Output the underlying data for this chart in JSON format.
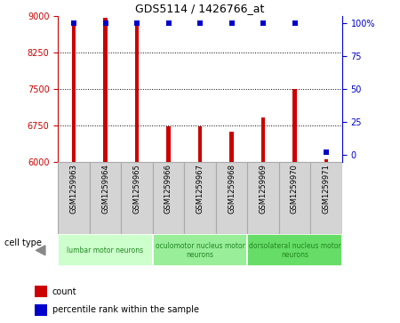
{
  "title": "GDS5114 / 1426766_at",
  "samples": [
    "GSM1259963",
    "GSM1259964",
    "GSM1259965",
    "GSM1259966",
    "GSM1259967",
    "GSM1259968",
    "GSM1259969",
    "GSM1259970",
    "GSM1259971"
  ],
  "counts": [
    8850,
    8970,
    8830,
    6720,
    6730,
    6620,
    6900,
    7500,
    6050
  ],
  "percentiles": [
    100,
    100,
    100,
    100,
    100,
    100,
    100,
    100,
    2
  ],
  "ylim": [
    6000,
    9000
  ],
  "yticks": [
    6000,
    6750,
    7500,
    8250,
    9000
  ],
  "right_yticks": [
    0,
    25,
    50,
    75,
    100
  ],
  "bar_color": "#cc0000",
  "percentile_color": "#0000cc",
  "bar_width": 0.12,
  "cell_types": [
    {
      "label": "lumbar motor neurons",
      "start": 0,
      "end": 3,
      "color": "#ccffcc"
    },
    {
      "label": "oculomotor nucleus motor\nneurons",
      "start": 3,
      "end": 6,
      "color": "#99ee99"
    },
    {
      "label": "dorsolateral nucleus motor\nneurons",
      "start": 6,
      "end": 9,
      "color": "#66dd66"
    }
  ],
  "cell_type_label": "cell type",
  "legend_count_label": "count",
  "legend_percentile_label": "percentile rank within the sample",
  "grid_color": "#000000",
  "tick_color_left": "#cc0000",
  "tick_color_right": "#0000cc",
  "sample_box_color": "#d4d4d4",
  "sample_box_edge": "#aaaaaa"
}
